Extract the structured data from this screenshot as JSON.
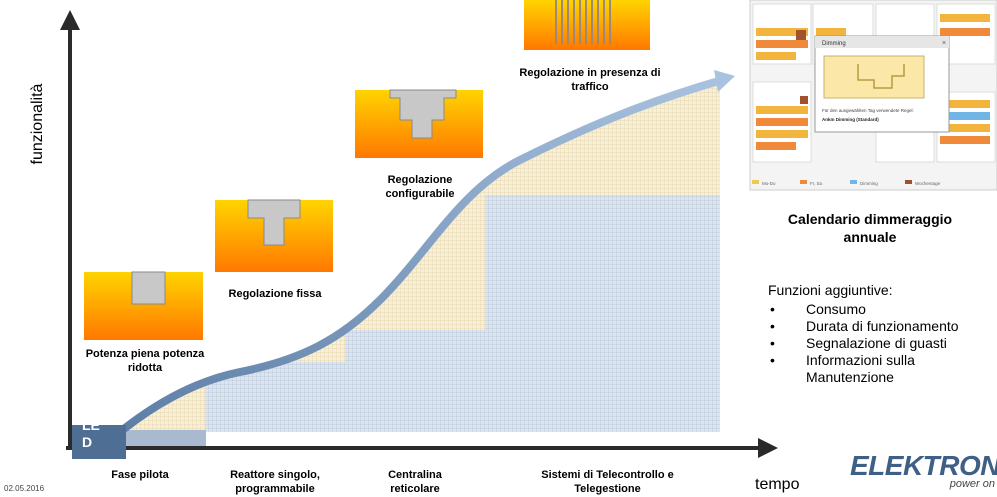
{
  "y_axis_label": "funzionalità",
  "x_axis_label": "tempo",
  "date": "02.05.2016",
  "led_tag": "LE D",
  "stages": [
    {
      "label": "Fase pilota"
    },
    {
      "label": "Reattore singolo, programmabile"
    },
    {
      "label": "Centralina reticolare"
    },
    {
      "label": "Sistemi di Telecontrollo e Telegestione"
    }
  ],
  "profiles": [
    {
      "label": "Potenza piena potenza ridotta"
    },
    {
      "label": "Regolazione fissa"
    },
    {
      "label": "Regolazione configurabile"
    },
    {
      "label": "Regolazione in presenza di traffico"
    }
  ],
  "calendar": {
    "title": "Calendario dimmeraggio annuale",
    "popup_title": "Dimming",
    "popup_note": "Für den ausgewählten Tag verwendete Regel:",
    "popup_rule": "Ankm Dimming (Standard)",
    "legend": [
      "Mo-Do",
      "Fr, Sa",
      "Dimming",
      "Wochentage"
    ]
  },
  "extras": {
    "heading": "Funzioni aggiuntive:",
    "items": [
      "Consumo",
      "Durata di funzionamento",
      "Segnalazione di guasti",
      "Informazioni sulla Manutenzione"
    ]
  },
  "brand": {
    "name": "ELEKTRON",
    "tagline": "power on"
  },
  "colors": {
    "axis": "#2a2a2a",
    "curve": "#8da9cc",
    "grid_blue": "#b9c8dc",
    "grid_tan": "#e8d9b0",
    "profile_top": "#ffd000",
    "profile_bottom": "#ff7a00",
    "led_box": "#4f6e93",
    "brand": "#3e5f86"
  }
}
